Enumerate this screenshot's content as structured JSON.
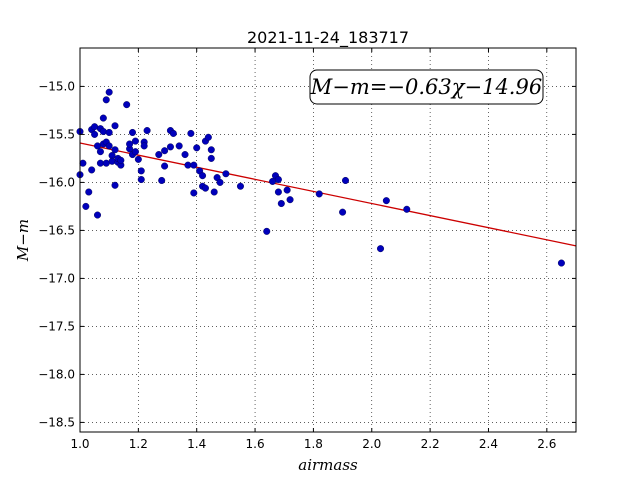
{
  "chart_data": {
    "type": "scatter",
    "title": "2021-11-24_183717",
    "xlabel": "airmass",
    "ylabel": "M−m",
    "xlim": [
      1.0,
      2.7
    ],
    "ylim": [
      -18.6,
      -14.6
    ],
    "x_ticks": [
      1.0,
      1.2,
      1.4,
      1.6,
      1.8,
      2.0,
      2.2,
      2.4,
      2.6
    ],
    "x_tick_labels": [
      "1.0",
      "1.2",
      "1.4",
      "1.6",
      "1.8",
      "2.0",
      "2.2",
      "2.4",
      "2.6"
    ],
    "y_ticks": [
      -15.0,
      -15.5,
      -16.0,
      -16.5,
      -17.0,
      -17.5,
      -18.0,
      -18.5
    ],
    "y_tick_labels": [
      "−15.0",
      "−15.5",
      "−16.0",
      "−16.5",
      "−17.0",
      "−17.5",
      "−18.0",
      "−18.5"
    ],
    "grid": true,
    "annotation": "M−m=−0.63χ−14.96",
    "fit": {
      "slope": -0.63,
      "intercept": -14.96,
      "color": "#cc0000"
    },
    "point_color": "#0000bb",
    "points": [
      [
        1.0,
        -15.47
      ],
      [
        1.0,
        -15.92
      ],
      [
        1.01,
        -15.8
      ],
      [
        1.02,
        -16.25
      ],
      [
        1.03,
        -16.1
      ],
      [
        1.04,
        -15.87
      ],
      [
        1.04,
        -15.45
      ],
      [
        1.05,
        -15.42
      ],
      [
        1.05,
        -15.5
      ],
      [
        1.06,
        -16.34
      ],
      [
        1.06,
        -15.62
      ],
      [
        1.07,
        -15.68
      ],
      [
        1.07,
        -15.8
      ],
      [
        1.07,
        -15.44
      ],
      [
        1.08,
        -15.33
      ],
      [
        1.08,
        -15.47
      ],
      [
        1.08,
        -15.6
      ],
      [
        1.09,
        -15.8
      ],
      [
        1.09,
        -15.14
      ],
      [
        1.09,
        -15.58
      ],
      [
        1.1,
        -15.06
      ],
      [
        1.1,
        -15.62
      ],
      [
        1.1,
        -15.48
      ],
      [
        1.11,
        -15.72
      ],
      [
        1.11,
        -15.78
      ],
      [
        1.12,
        -16.03
      ],
      [
        1.12,
        -15.41
      ],
      [
        1.12,
        -15.66
      ],
      [
        1.13,
        -15.79
      ],
      [
        1.13,
        -15.75
      ],
      [
        1.14,
        -15.82
      ],
      [
        1.14,
        -15.77
      ],
      [
        1.16,
        -15.19
      ],
      [
        1.17,
        -15.65
      ],
      [
        1.17,
        -15.6
      ],
      [
        1.18,
        -15.71
      ],
      [
        1.18,
        -15.48
      ],
      [
        1.19,
        -15.68
      ],
      [
        1.19,
        -15.57
      ],
      [
        1.2,
        -15.76
      ],
      [
        1.21,
        -15.88
      ],
      [
        1.21,
        -15.97
      ],
      [
        1.22,
        -15.58
      ],
      [
        1.22,
        -15.62
      ],
      [
        1.23,
        -15.46
      ],
      [
        1.27,
        -15.71
      ],
      [
        1.28,
        -15.98
      ],
      [
        1.29,
        -15.83
      ],
      [
        1.29,
        -15.67
      ],
      [
        1.31,
        -15.46
      ],
      [
        1.31,
        -15.63
      ],
      [
        1.32,
        -15.49
      ],
      [
        1.34,
        -15.62
      ],
      [
        1.36,
        -15.71
      ],
      [
        1.37,
        -15.82
      ],
      [
        1.38,
        -15.49
      ],
      [
        1.39,
        -16.11
      ],
      [
        1.39,
        -15.82
      ],
      [
        1.4,
        -15.64
      ],
      [
        1.41,
        -15.88
      ],
      [
        1.42,
        -16.04
      ],
      [
        1.42,
        -15.93
      ],
      [
        1.43,
        -15.57
      ],
      [
        1.43,
        -16.06
      ],
      [
        1.44,
        -15.53
      ],
      [
        1.45,
        -15.66
      ],
      [
        1.45,
        -15.75
      ],
      [
        1.46,
        -16.1
      ],
      [
        1.47,
        -15.95
      ],
      [
        1.48,
        -16.0
      ],
      [
        1.5,
        -15.91
      ],
      [
        1.55,
        -16.04
      ],
      [
        1.64,
        -16.51
      ],
      [
        1.66,
        -15.99
      ],
      [
        1.67,
        -15.93
      ],
      [
        1.68,
        -15.97
      ],
      [
        1.68,
        -16.1
      ],
      [
        1.69,
        -16.22
      ],
      [
        1.71,
        -16.08
      ],
      [
        1.72,
        -16.18
      ],
      [
        1.82,
        -16.12
      ],
      [
        1.9,
        -16.31
      ],
      [
        1.91,
        -15.98
      ],
      [
        2.03,
        -16.69
      ],
      [
        2.05,
        -16.19
      ],
      [
        2.12,
        -16.28
      ],
      [
        2.65,
        -16.84
      ]
    ]
  }
}
